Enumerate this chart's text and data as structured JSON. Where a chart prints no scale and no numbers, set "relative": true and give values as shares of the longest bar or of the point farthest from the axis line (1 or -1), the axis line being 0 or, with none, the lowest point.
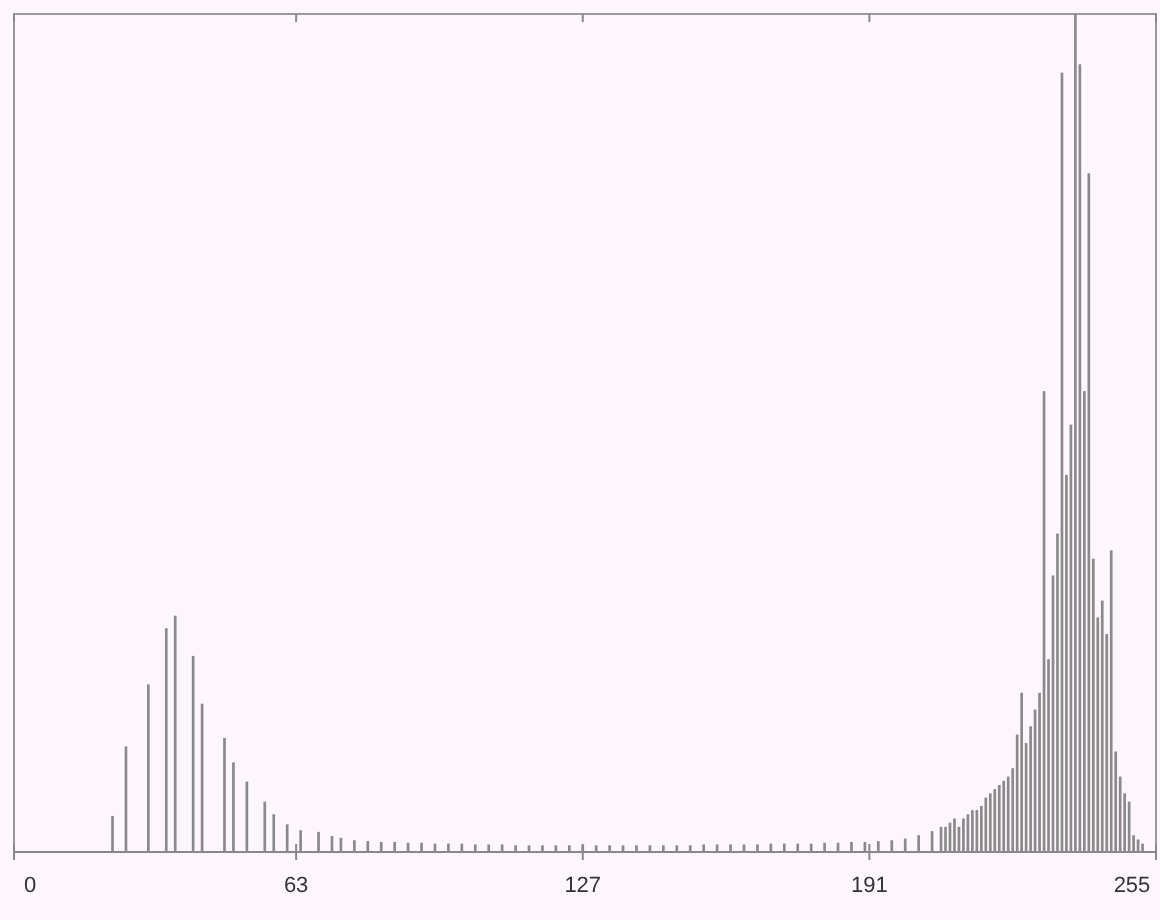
{
  "chart_data": {
    "type": "bar",
    "relative": true,
    "color": "#8a8a8a",
    "xlim": [
      0,
      255
    ],
    "xticks": [
      0,
      63,
      127,
      191,
      255
    ],
    "tick_labels": "x",
    "grid": false,
    "x": [
      22,
      25,
      30,
      34,
      36,
      40,
      42,
      47,
      49,
      52,
      56,
      58,
      61,
      64,
      68,
      71,
      73,
      76,
      79,
      82,
      85,
      88,
      91,
      94,
      97,
      100,
      103,
      106,
      109,
      112,
      115,
      118,
      121,
      124,
      127,
      130,
      133,
      136,
      139,
      142,
      145,
      148,
      151,
      154,
      157,
      160,
      163,
      166,
      169,
      172,
      175,
      178,
      181,
      184,
      187,
      190,
      193,
      196,
      199,
      202,
      205,
      207,
      208,
      209,
      210,
      211,
      212,
      213,
      214,
      215,
      216,
      217,
      218,
      219,
      220,
      221,
      222,
      223,
      224,
      225,
      226,
      227,
      228,
      229,
      230,
      231,
      232,
      233,
      234,
      235,
      236,
      237,
      238,
      239,
      240,
      241,
      242,
      243,
      244,
      245,
      246,
      247,
      248,
      249,
      250,
      251,
      252
    ],
    "values": [
      0.043,
      0.126,
      0.2,
      0.267,
      0.282,
      0.234,
      0.177,
      0.136,
      0.107,
      0.084,
      0.06,
      0.045,
      0.033,
      0.026,
      0.024,
      0.019,
      0.017,
      0.014,
      0.013,
      0.012,
      0.012,
      0.011,
      0.011,
      0.01,
      0.01,
      0.01,
      0.009,
      0.009,
      0.009,
      0.008,
      0.008,
      0.008,
      0.008,
      0.008,
      0.008,
      0.008,
      0.008,
      0.008,
      0.008,
      0.008,
      0.008,
      0.008,
      0.008,
      0.009,
      0.009,
      0.009,
      0.009,
      0.009,
      0.01,
      0.01,
      0.01,
      0.01,
      0.011,
      0.011,
      0.012,
      0.012,
      0.013,
      0.014,
      0.016,
      0.02,
      0.025,
      0.03,
      0.03,
      0.035,
      0.04,
      0.03,
      0.04,
      0.045,
      0.05,
      0.05,
      0.055,
      0.065,
      0.07,
      0.075,
      0.08,
      0.085,
      0.09,
      0.1,
      0.14,
      0.19,
      0.13,
      0.15,
      0.17,
      0.19,
      0.55,
      0.23,
      0.33,
      0.38,
      0.93,
      0.45,
      0.51,
      1.0,
      0.94,
      0.55,
      0.81,
      0.35,
      0.28,
      0.3,
      0.26,
      0.36,
      0.12,
      0.09,
      0.07,
      0.06,
      0.02,
      0.015,
      0.01
    ]
  }
}
